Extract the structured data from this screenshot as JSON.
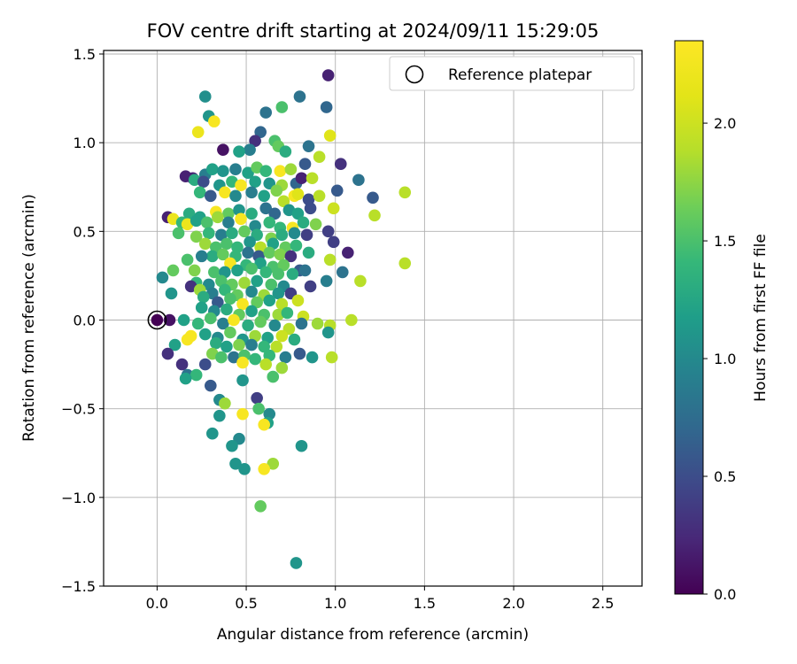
{
  "chart_data": {
    "type": "scatter",
    "title": "FOV centre drift starting at 2024/09/11 15:29:05",
    "xlabel": "Angular distance from reference (arcmin)",
    "ylabel": "Rotation from reference (arcmin)",
    "xlim": [
      -0.3,
      2.72
    ],
    "ylim": [
      -1.5,
      1.52
    ],
    "xticks": [
      0.0,
      0.5,
      1.0,
      1.5,
      2.0,
      2.5
    ],
    "yticks": [
      -1.5,
      -1.0,
      -0.5,
      0.0,
      0.5,
      1.0,
      1.5
    ],
    "xtick_labels": [
      "0.0",
      "0.5",
      "1.0",
      "1.5",
      "2.0",
      "2.5"
    ],
    "ytick_labels": [
      "−1.5",
      "−1.0",
      "−0.5",
      "0.0",
      "0.5",
      "1.0",
      "1.5"
    ],
    "grid": true,
    "legend": {
      "position": "top-right",
      "entries": [
        "Reference platepar"
      ]
    },
    "reference_point": {
      "x": 0.0,
      "y": 0.0
    },
    "colorbar": {
      "label": "Hours from first FF file",
      "range": [
        0.0,
        2.35
      ],
      "ticks": [
        0.0,
        0.5,
        1.0,
        1.5,
        2.0
      ],
      "tick_labels": [
        "0.0",
        "0.5",
        "1.0",
        "1.5",
        "2.0"
      ],
      "colormap": "viridis"
    },
    "points": [
      [
        0.0,
        0.0,
        0.0
      ],
      [
        0.96,
        1.38,
        0.2
      ],
      [
        0.8,
        1.26,
        0.8
      ],
      [
        0.27,
        1.26,
        1.05
      ],
      [
        0.95,
        1.2,
        0.7
      ],
      [
        0.7,
        1.2,
        1.5
      ],
      [
        0.61,
        1.17,
        0.8
      ],
      [
        0.29,
        1.15,
        1.1
      ],
      [
        0.32,
        1.12,
        2.3
      ],
      [
        0.23,
        1.06,
        2.2
      ],
      [
        0.58,
        1.06,
        0.7
      ],
      [
        0.97,
        1.04,
        2.1
      ],
      [
        0.55,
        1.01,
        0.3
      ],
      [
        0.66,
        1.01,
        1.5
      ],
      [
        0.37,
        0.96,
        0.1
      ],
      [
        0.85,
        0.98,
        0.8
      ],
      [
        0.68,
        0.98,
        1.6
      ],
      [
        0.52,
        0.96,
        0.9
      ],
      [
        0.46,
        0.95,
        1.2
      ],
      [
        0.72,
        0.95,
        1.3
      ],
      [
        0.91,
        0.92,
        1.9
      ],
      [
        0.2,
        0.8,
        0.2
      ],
      [
        0.16,
        0.81,
        0.2
      ],
      [
        0.27,
        0.82,
        0.9
      ],
      [
        0.31,
        0.85,
        1.2
      ],
      [
        0.37,
        0.84,
        1.1
      ],
      [
        0.44,
        0.85,
        0.9
      ],
      [
        0.51,
        0.83,
        1.2
      ],
      [
        0.56,
        0.86,
        1.6
      ],
      [
        0.61,
        0.84,
        1.4
      ],
      [
        0.69,
        0.84,
        2.3
      ],
      [
        0.75,
        0.85,
        1.8
      ],
      [
        0.83,
        0.88,
        0.6
      ],
      [
        1.03,
        0.88,
        0.3
      ],
      [
        0.21,
        0.79,
        1.3
      ],
      [
        0.26,
        0.78,
        0.5
      ],
      [
        0.35,
        0.76,
        1.1
      ],
      [
        0.42,
        0.78,
        1.4
      ],
      [
        0.47,
        0.76,
        2.3
      ],
      [
        0.55,
        0.78,
        1.2
      ],
      [
        0.63,
        0.77,
        1.1
      ],
      [
        0.7,
        0.76,
        1.8
      ],
      [
        0.78,
        0.77,
        0.7
      ],
      [
        0.81,
        0.8,
        0.2
      ],
      [
        0.87,
        0.8,
        1.9
      ],
      [
        1.13,
        0.79,
        0.8
      ],
      [
        0.24,
        0.72,
        1.4
      ],
      [
        0.3,
        0.7,
        0.6
      ],
      [
        0.38,
        0.72,
        2.3
      ],
      [
        0.44,
        0.7,
        1.0
      ],
      [
        0.53,
        0.72,
        0.9
      ],
      [
        0.6,
        0.7,
        1.2
      ],
      [
        0.67,
        0.73,
        1.7
      ],
      [
        0.71,
        0.67,
        1.9
      ],
      [
        0.77,
        0.7,
        2.3
      ],
      [
        0.79,
        0.71,
        2.1
      ],
      [
        0.85,
        0.68,
        0.5
      ],
      [
        0.91,
        0.7,
        1.9
      ],
      [
        1.01,
        0.73,
        0.6
      ],
      [
        1.21,
        0.69,
        0.6
      ],
      [
        1.39,
        0.72,
        1.9
      ],
      [
        0.18,
        0.6,
        1.3
      ],
      [
        0.24,
        0.58,
        1.2
      ],
      [
        0.33,
        0.61,
        2.3
      ],
      [
        0.4,
        0.6,
        1.6
      ],
      [
        0.46,
        0.62,
        1.1
      ],
      [
        0.53,
        0.6,
        1.3
      ],
      [
        0.61,
        0.63,
        0.8
      ],
      [
        0.66,
        0.6,
        0.7
      ],
      [
        0.74,
        0.62,
        1.1
      ],
      [
        0.79,
        0.6,
        1.2
      ],
      [
        0.86,
        0.63,
        0.5
      ],
      [
        0.99,
        0.63,
        2.0
      ],
      [
        1.22,
        0.59,
        1.9
      ],
      [
        0.06,
        0.58,
        0.2
      ],
      [
        0.09,
        0.57,
        2.2
      ],
      [
        0.14,
        0.55,
        1.4
      ],
      [
        0.17,
        0.54,
        2.2
      ],
      [
        0.22,
        0.56,
        1.2
      ],
      [
        0.28,
        0.55,
        1.5
      ],
      [
        0.34,
        0.58,
        1.8
      ],
      [
        0.4,
        0.55,
        0.9
      ],
      [
        0.47,
        0.57,
        2.3
      ],
      [
        0.55,
        0.53,
        1.0
      ],
      [
        0.63,
        0.55,
        1.4
      ],
      [
        0.69,
        0.52,
        1.4
      ],
      [
        0.76,
        0.52,
        2.3
      ],
      [
        0.82,
        0.55,
        1.3
      ],
      [
        0.89,
        0.54,
        1.7
      ],
      [
        0.96,
        0.5,
        0.4
      ],
      [
        0.12,
        0.49,
        1.5
      ],
      [
        0.22,
        0.47,
        1.7
      ],
      [
        0.29,
        0.49,
        1.4
      ],
      [
        0.36,
        0.48,
        0.9
      ],
      [
        0.42,
        0.49,
        1.3
      ],
      [
        0.49,
        0.5,
        1.6
      ],
      [
        0.56,
        0.48,
        1.3
      ],
      [
        0.64,
        0.46,
        1.7
      ],
      [
        0.7,
        0.48,
        1.3
      ],
      [
        0.77,
        0.49,
        1.0
      ],
      [
        0.84,
        0.48,
        0.4
      ],
      [
        0.99,
        0.44,
        0.4
      ],
      [
        0.27,
        0.43,
        1.8
      ],
      [
        0.33,
        0.41,
        1.5
      ],
      [
        0.39,
        0.43,
        1.5
      ],
      [
        0.45,
        0.41,
        1.4
      ],
      [
        0.52,
        0.44,
        1.1
      ],
      [
        0.58,
        0.41,
        1.9
      ],
      [
        0.65,
        0.43,
        1.2
      ],
      [
        0.72,
        0.41,
        1.6
      ],
      [
        0.78,
        0.42,
        1.4
      ],
      [
        0.31,
        0.36,
        1.3
      ],
      [
        0.37,
        0.37,
        1.6
      ],
      [
        0.44,
        0.36,
        1.4
      ],
      [
        0.51,
        0.38,
        0.8
      ],
      [
        0.57,
        0.36,
        0.6
      ],
      [
        0.63,
        0.38,
        1.6
      ],
      [
        0.69,
        0.37,
        1.7
      ],
      [
        0.75,
        0.36,
        0.3
      ],
      [
        0.85,
        0.38,
        1.3
      ],
      [
        1.07,
        0.38,
        0.2
      ],
      [
        0.97,
        0.34,
        1.9
      ],
      [
        1.39,
        0.32,
        1.9
      ],
      [
        0.17,
        0.34,
        1.5
      ],
      [
        0.25,
        0.36,
        0.9
      ],
      [
        0.41,
        0.32,
        2.3
      ],
      [
        0.5,
        0.31,
        1.4
      ],
      [
        0.58,
        0.32,
        1.2
      ],
      [
        0.65,
        0.3,
        1.5
      ],
      [
        0.71,
        0.31,
        1.6
      ],
      [
        0.8,
        0.28,
        0.6
      ],
      [
        0.83,
        0.28,
        0.8
      ],
      [
        1.04,
        0.27,
        0.8
      ],
      [
        0.09,
        0.28,
        1.6
      ],
      [
        0.21,
        0.28,
        1.7
      ],
      [
        0.32,
        0.27,
        1.5
      ],
      [
        0.38,
        0.27,
        1.1
      ],
      [
        0.45,
        0.28,
        1.2
      ],
      [
        0.53,
        0.29,
        1.5
      ],
      [
        0.61,
        0.27,
        1.4
      ],
      [
        0.68,
        0.26,
        1.5
      ],
      [
        0.76,
        0.26,
        1.3
      ],
      [
        0.03,
        0.24,
        1.0
      ],
      [
        0.95,
        0.22,
        0.9
      ],
      [
        1.14,
        0.22,
        1.9
      ],
      [
        0.22,
        0.21,
        1.4
      ],
      [
        0.29,
        0.2,
        1.0
      ],
      [
        0.36,
        0.22,
        1.5
      ],
      [
        0.42,
        0.2,
        1.6
      ],
      [
        0.49,
        0.21,
        1.8
      ],
      [
        0.56,
        0.22,
        1.2
      ],
      [
        0.64,
        0.2,
        1.5
      ],
      [
        0.71,
        0.19,
        1.0
      ],
      [
        0.86,
        0.19,
        0.4
      ],
      [
        0.19,
        0.19,
        0.3
      ],
      [
        0.24,
        0.17,
        1.8
      ],
      [
        0.31,
        0.15,
        0.9
      ],
      [
        0.38,
        0.17,
        1.4
      ],
      [
        0.45,
        0.14,
        1.6
      ],
      [
        0.53,
        0.16,
        1.0
      ],
      [
        0.6,
        0.14,
        1.8
      ],
      [
        0.68,
        0.15,
        1.1
      ],
      [
        0.75,
        0.15,
        0.4
      ],
      [
        0.08,
        0.15,
        1.1
      ],
      [
        0.26,
        0.13,
        1.3
      ],
      [
        0.34,
        0.1,
        0.6
      ],
      [
        0.41,
        0.12,
        1.5
      ],
      [
        0.48,
        0.09,
        2.3
      ],
      [
        0.56,
        0.1,
        1.6
      ],
      [
        0.63,
        0.11,
        1.2
      ],
      [
        0.7,
        0.09,
        1.9
      ],
      [
        0.79,
        0.11,
        2.0
      ],
      [
        0.25,
        0.07,
        1.2
      ],
      [
        0.32,
        0.05,
        1.0
      ],
      [
        0.39,
        0.06,
        1.3
      ],
      [
        0.46,
        0.03,
        1.6
      ],
      [
        0.53,
        0.05,
        1.2
      ],
      [
        0.6,
        0.03,
        1.5
      ],
      [
        0.68,
        0.03,
        1.8
      ],
      [
        0.73,
        0.04,
        1.4
      ],
      [
        0.82,
        0.02,
        2.0
      ],
      [
        0.9,
        -0.02,
        1.8
      ],
      [
        0.97,
        -0.03,
        1.9
      ],
      [
        1.09,
        0.0,
        1.9
      ],
      [
        0.07,
        0.0,
        0.1
      ],
      [
        0.15,
        0.0,
        1.2
      ],
      [
        0.23,
        -0.02,
        1.4
      ],
      [
        0.3,
        0.01,
        1.5
      ],
      [
        0.37,
        -0.02,
        0.9
      ],
      [
        0.43,
        0.0,
        2.3
      ],
      [
        0.51,
        -0.03,
        1.3
      ],
      [
        0.58,
        -0.01,
        1.6
      ],
      [
        0.66,
        -0.03,
        1.0
      ],
      [
        0.74,
        -0.05,
        1.9
      ],
      [
        0.81,
        -0.02,
        0.8
      ],
      [
        0.96,
        -0.07,
        1.1
      ],
      [
        0.19,
        -0.09,
        2.3
      ],
      [
        0.27,
        -0.08,
        1.2
      ],
      [
        0.34,
        -0.1,
        1.0
      ],
      [
        0.41,
        -0.07,
        1.6
      ],
      [
        0.48,
        -0.11,
        1.1
      ],
      [
        0.55,
        -0.09,
        1.8
      ],
      [
        0.62,
        -0.1,
        1.2
      ],
      [
        0.7,
        -0.09,
        2.0
      ],
      [
        0.77,
        -0.11,
        1.3
      ],
      [
        0.17,
        -0.11,
        2.3
      ],
      [
        0.1,
        -0.14,
        1.2
      ],
      [
        0.33,
        -0.13,
        1.3
      ],
      [
        0.39,
        -0.15,
        1.2
      ],
      [
        0.46,
        -0.14,
        1.7
      ],
      [
        0.53,
        -0.14,
        0.9
      ],
      [
        0.6,
        -0.15,
        1.4
      ],
      [
        0.67,
        -0.15,
        1.9
      ],
      [
        0.8,
        -0.19,
        0.6
      ],
      [
        0.06,
        -0.19,
        0.3
      ],
      [
        0.31,
        -0.19,
        1.7
      ],
      [
        0.36,
        -0.21,
        1.5
      ],
      [
        0.43,
        -0.21,
        0.8
      ],
      [
        0.49,
        -0.2,
        1.5
      ],
      [
        0.55,
        -0.22,
        1.4
      ],
      [
        0.63,
        -0.2,
        1.4
      ],
      [
        0.72,
        -0.21,
        0.9
      ],
      [
        0.87,
        -0.21,
        1.1
      ],
      [
        0.98,
        -0.21,
        1.9
      ],
      [
        0.14,
        -0.25,
        0.3
      ],
      [
        0.27,
        -0.25,
        0.5
      ],
      [
        0.48,
        -0.24,
        2.3
      ],
      [
        0.61,
        -0.25,
        1.9
      ],
      [
        0.7,
        -0.27,
        1.8
      ],
      [
        0.17,
        -0.31,
        0.8
      ],
      [
        0.22,
        -0.31,
        1.4
      ],
      [
        0.16,
        -0.33,
        1.2
      ],
      [
        0.65,
        -0.32,
        1.5
      ],
      [
        0.3,
        -0.37,
        0.6
      ],
      [
        0.48,
        -0.34,
        1.1
      ],
      [
        0.56,
        -0.44,
        0.4
      ],
      [
        0.35,
        -0.45,
        1.0
      ],
      [
        0.38,
        -0.47,
        1.8
      ],
      [
        0.57,
        -0.5,
        1.5
      ],
      [
        0.63,
        -0.53,
        1.0
      ],
      [
        0.48,
        -0.53,
        2.3
      ],
      [
        0.35,
        -0.54,
        1.1
      ],
      [
        0.62,
        -0.58,
        1.2
      ],
      [
        0.6,
        -0.59,
        2.3
      ],
      [
        0.31,
        -0.64,
        1.1
      ],
      [
        0.46,
        -0.67,
        1.0
      ],
      [
        0.42,
        -0.71,
        1.1
      ],
      [
        0.81,
        -0.71,
        1.1
      ],
      [
        0.44,
        -0.81,
        1.1
      ],
      [
        0.65,
        -0.81,
        1.8
      ],
      [
        0.49,
        -0.84,
        1.1
      ],
      [
        0.6,
        -0.84,
        2.3
      ],
      [
        0.58,
        -1.05,
        1.6
      ],
      [
        0.78,
        -1.37,
        1.1
      ]
    ]
  }
}
